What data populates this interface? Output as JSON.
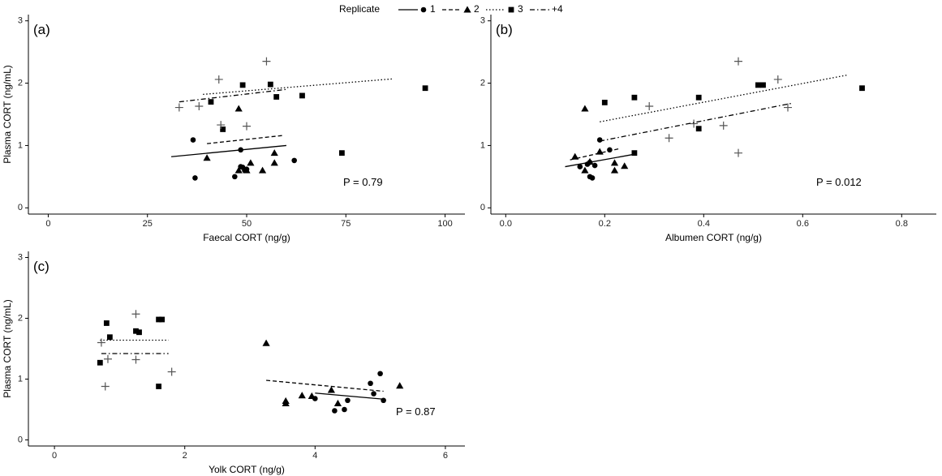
{
  "legend": {
    "title": "Replicate",
    "entries": [
      {
        "label": "1",
        "line": "solid",
        "marker": "circle"
      },
      {
        "label": "2",
        "line": "dashed",
        "marker": "triangle"
      },
      {
        "label": "3",
        "line": "dotted",
        "marker": "square"
      },
      {
        "label": "+4",
        "line": "dotdash",
        "marker": ""
      }
    ]
  },
  "chart_data": [
    {
      "type": "scatter",
      "panel_label": "(a)",
      "xlabel": "Faecal CORT (ng/g)",
      "ylabel": "Plasma CORT (ng/mL)",
      "xlim": [
        -5,
        105
      ],
      "ylim": [
        -0.1,
        3.1
      ],
      "xticks": [
        0,
        25,
        50,
        75,
        100
      ],
      "yticks": [
        0,
        1,
        2,
        3
      ],
      "p_value": "P = 0.79",
      "series": [
        {
          "name": "1",
          "marker": "circle",
          "x": [
            36.5,
            37,
            47,
            48.5,
            49,
            49.5,
            50,
            62,
            48.5
          ],
          "y": [
            1.09,
            0.48,
            0.5,
            0.66,
            0.65,
            0.6,
            0.62,
            0.76,
            0.93
          ],
          "fit": {
            "x": [
              31,
              60
            ],
            "y": [
              0.82,
              1.0
            ]
          }
        },
        {
          "name": "2",
          "marker": "triangle",
          "x": [
            40,
            48,
            50,
            51,
            54,
            57,
            57,
            48
          ],
          "y": [
            0.8,
            0.6,
            0.6,
            0.72,
            0.6,
            0.88,
            0.72,
            1.59
          ],
          "fit": {
            "x": [
              40,
              59
            ],
            "y": [
              1.03,
              1.16
            ]
          }
        },
        {
          "name": "3",
          "marker": "square",
          "x": [
            41,
            44,
            49,
            56,
            57.5,
            64,
            74,
            95
          ],
          "y": [
            1.7,
            1.26,
            1.97,
            1.98,
            1.78,
            1.8,
            0.88,
            1.92
          ],
          "fit": {
            "x": [
              39,
              87
            ],
            "y": [
              1.82,
              2.07
            ]
          }
        },
        {
          "name": "+4",
          "marker": "",
          "x": [
            33,
            38,
            43,
            43.5,
            50,
            55
          ],
          "y": [
            1.61,
            1.63,
            2.06,
            1.33,
            1.31,
            2.35
          ],
          "fit": {
            "x": [
              33,
              60
            ],
            "y": [
              1.7,
              1.9
            ]
          }
        }
      ]
    },
    {
      "type": "scatter",
      "panel_label": "(b)",
      "xlabel": "Albumen CORT (ng/g)",
      "ylabel": "",
      "xlim": [
        -0.03,
        0.87
      ],
      "ylim": [
        -0.1,
        3.1
      ],
      "xticks": [
        0.0,
        0.2,
        0.4,
        0.6,
        0.8
      ],
      "yticks": [
        0,
        1,
        2,
        3
      ],
      "p_value": "P = 0.012",
      "series": [
        {
          "name": "1",
          "marker": "circle",
          "x": [
            0.15,
            0.165,
            0.17,
            0.175,
            0.18,
            0.19,
            0.21,
            0.17
          ],
          "y": [
            0.66,
            0.7,
            0.5,
            0.48,
            0.68,
            1.09,
            0.93,
            0.73
          ],
          "fit": {
            "x": [
              0.12,
              0.26
            ],
            "y": [
              0.66,
              0.86
            ]
          }
        },
        {
          "name": "2",
          "marker": "triangle",
          "x": [
            0.14,
            0.16,
            0.19,
            0.22,
            0.22,
            0.24,
            0.16,
            0.17
          ],
          "y": [
            0.82,
            1.59,
            0.9,
            0.6,
            0.72,
            0.67,
            0.6,
            0.74
          ],
          "fit": {
            "x": [
              0.13,
              0.23
            ],
            "y": [
              0.77,
              0.95
            ]
          }
        },
        {
          "name": "3",
          "marker": "square",
          "x": [
            0.2,
            0.26,
            0.26,
            0.39,
            0.39,
            0.51,
            0.52,
            0.72
          ],
          "y": [
            1.69,
            1.77,
            0.88,
            1.77,
            1.27,
            1.97,
            1.97,
            1.92
          ],
          "fit": {
            "x": [
              0.19,
              0.69
            ],
            "y": [
              1.38,
              2.13
            ]
          }
        },
        {
          "name": "+4",
          "marker": "",
          "x": [
            0.29,
            0.33,
            0.38,
            0.44,
            0.47,
            0.47,
            0.55,
            0.57
          ],
          "y": [
            1.63,
            1.12,
            1.35,
            1.32,
            0.88,
            2.35,
            2.06,
            1.61
          ],
          "fit": {
            "x": [
              0.19,
              0.58
            ],
            "y": [
              1.07,
              1.68
            ]
          }
        }
      ]
    },
    {
      "type": "scatter",
      "panel_label": "(c)",
      "xlabel": "Yolk CORT (ng/g)",
      "ylabel": "Plasma CORT (ng/mL)",
      "xlim": [
        -0.4,
        6.3
      ],
      "ylim": [
        -0.1,
        3.1
      ],
      "xticks": [
        0,
        2,
        4,
        6
      ],
      "yticks": [
        0,
        1,
        2,
        3
      ],
      "p_value": "P = 0.87",
      "series": [
        {
          "name": "1",
          "marker": "circle",
          "x": [
            4.0,
            4.3,
            4.45,
            4.5,
            4.85,
            4.9,
            5.0,
            5.05
          ],
          "y": [
            0.68,
            0.48,
            0.5,
            0.65,
            0.93,
            0.76,
            1.09,
            0.65
          ],
          "fit": {
            "x": [
              4.0,
              5.05
            ],
            "y": [
              0.77,
              0.67
            ]
          }
        },
        {
          "name": "2",
          "marker": "triangle",
          "x": [
            3.25,
            3.55,
            3.55,
            3.8,
            3.95,
            4.25,
            4.35,
            5.3
          ],
          "y": [
            1.59,
            0.6,
            0.64,
            0.73,
            0.72,
            0.82,
            0.6,
            0.89
          ],
          "fit": {
            "x": [
              3.25,
              5.05
            ],
            "y": [
              0.98,
              0.8
            ]
          }
        },
        {
          "name": "3",
          "marker": "square",
          "x": [
            0.7,
            0.8,
            0.85,
            1.25,
            1.3,
            1.6,
            1.65,
            1.6
          ],
          "y": [
            1.27,
            1.92,
            1.69,
            1.79,
            1.77,
            0.88,
            1.98,
            1.98
          ],
          "fit": {
            "x": [
              0.7,
              1.75
            ],
            "y": [
              1.64,
              1.64
            ]
          }
        },
        {
          "name": "+4",
          "marker": "",
          "x": [
            0.72,
            0.78,
            0.82,
            1.25,
            1.25,
            1.8
          ],
          "y": [
            1.6,
            0.88,
            1.33,
            1.32,
            2.07,
            1.12
          ],
          "fit": {
            "x": [
              0.72,
              1.75
            ],
            "y": [
              1.42,
              1.42
            ]
          }
        }
      ]
    }
  ]
}
